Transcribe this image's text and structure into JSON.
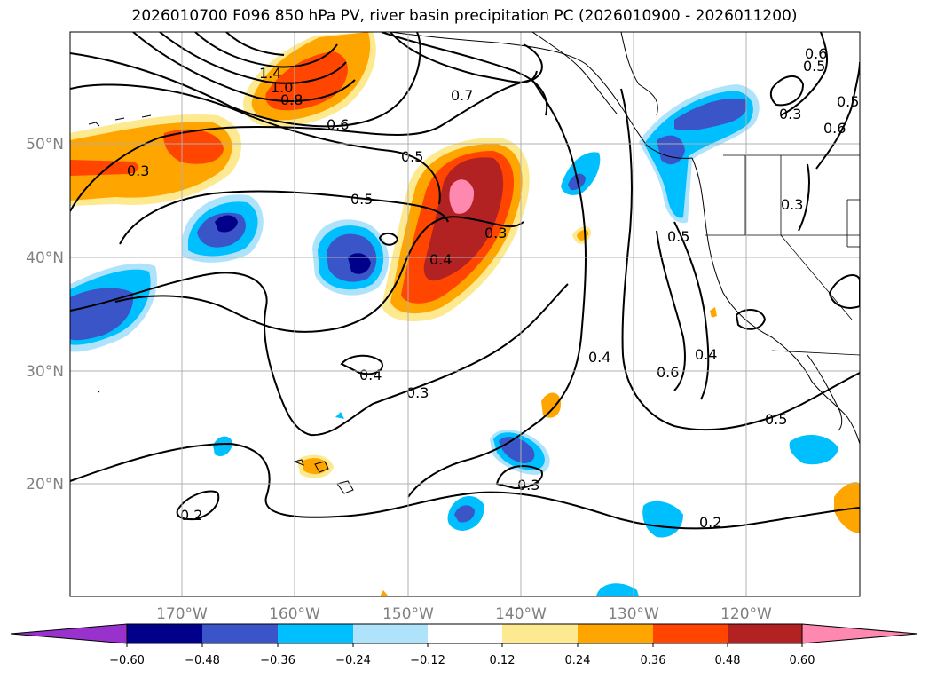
{
  "title": "2026010700 F096 850 hPa PV, river basin precipitation PC (2026010900 - 2026011200)",
  "lat_labels": [
    "50°N",
    "40°N",
    "30°N",
    "20°N"
  ],
  "lon_labels": [
    "170°W",
    "160°W",
    "150°W",
    "140°W",
    "130°W",
    "120°W"
  ],
  "contour_labels": [
    "1.4",
    "1.0",
    "0.8",
    "0.7",
    "0.6",
    "0.5",
    "0.5",
    "0.5",
    "0.4",
    "0.3",
    "0.3",
    "0.3",
    "0.4",
    "0.3",
    "0.3",
    "0.2",
    "0.2",
    "0.6",
    "0.4",
    "0.5",
    "0.4",
    "0.5",
    "0.6",
    "0.5",
    "0.6",
    "0.3"
  ],
  "colorbar": {
    "ticks": [
      "−0.60",
      "−0.48",
      "−0.36",
      "−0.24",
      "−0.12",
      "0.12",
      "0.24",
      "0.36",
      "0.48",
      "0.60"
    ],
    "colors": [
      "#9932cc",
      "#00008b",
      "#3a55c8",
      "#00bfff",
      "#afe3fb",
      "#ffffff",
      "#fde98f",
      "#ffa500",
      "#ff4500",
      "#b22222",
      "#ff88b0"
    ]
  },
  "colors": {
    "strong_neg": "#00008b",
    "mid_neg": "#3a55c8",
    "neg": "#00bfff",
    "weak_neg": "#afe3fb",
    "weak_pos": "#fde98f",
    "pos": "#ffa500",
    "mid_pos": "#ff4500",
    "strong_pos": "#b22222",
    "max_pos": "#ff88b0"
  }
}
